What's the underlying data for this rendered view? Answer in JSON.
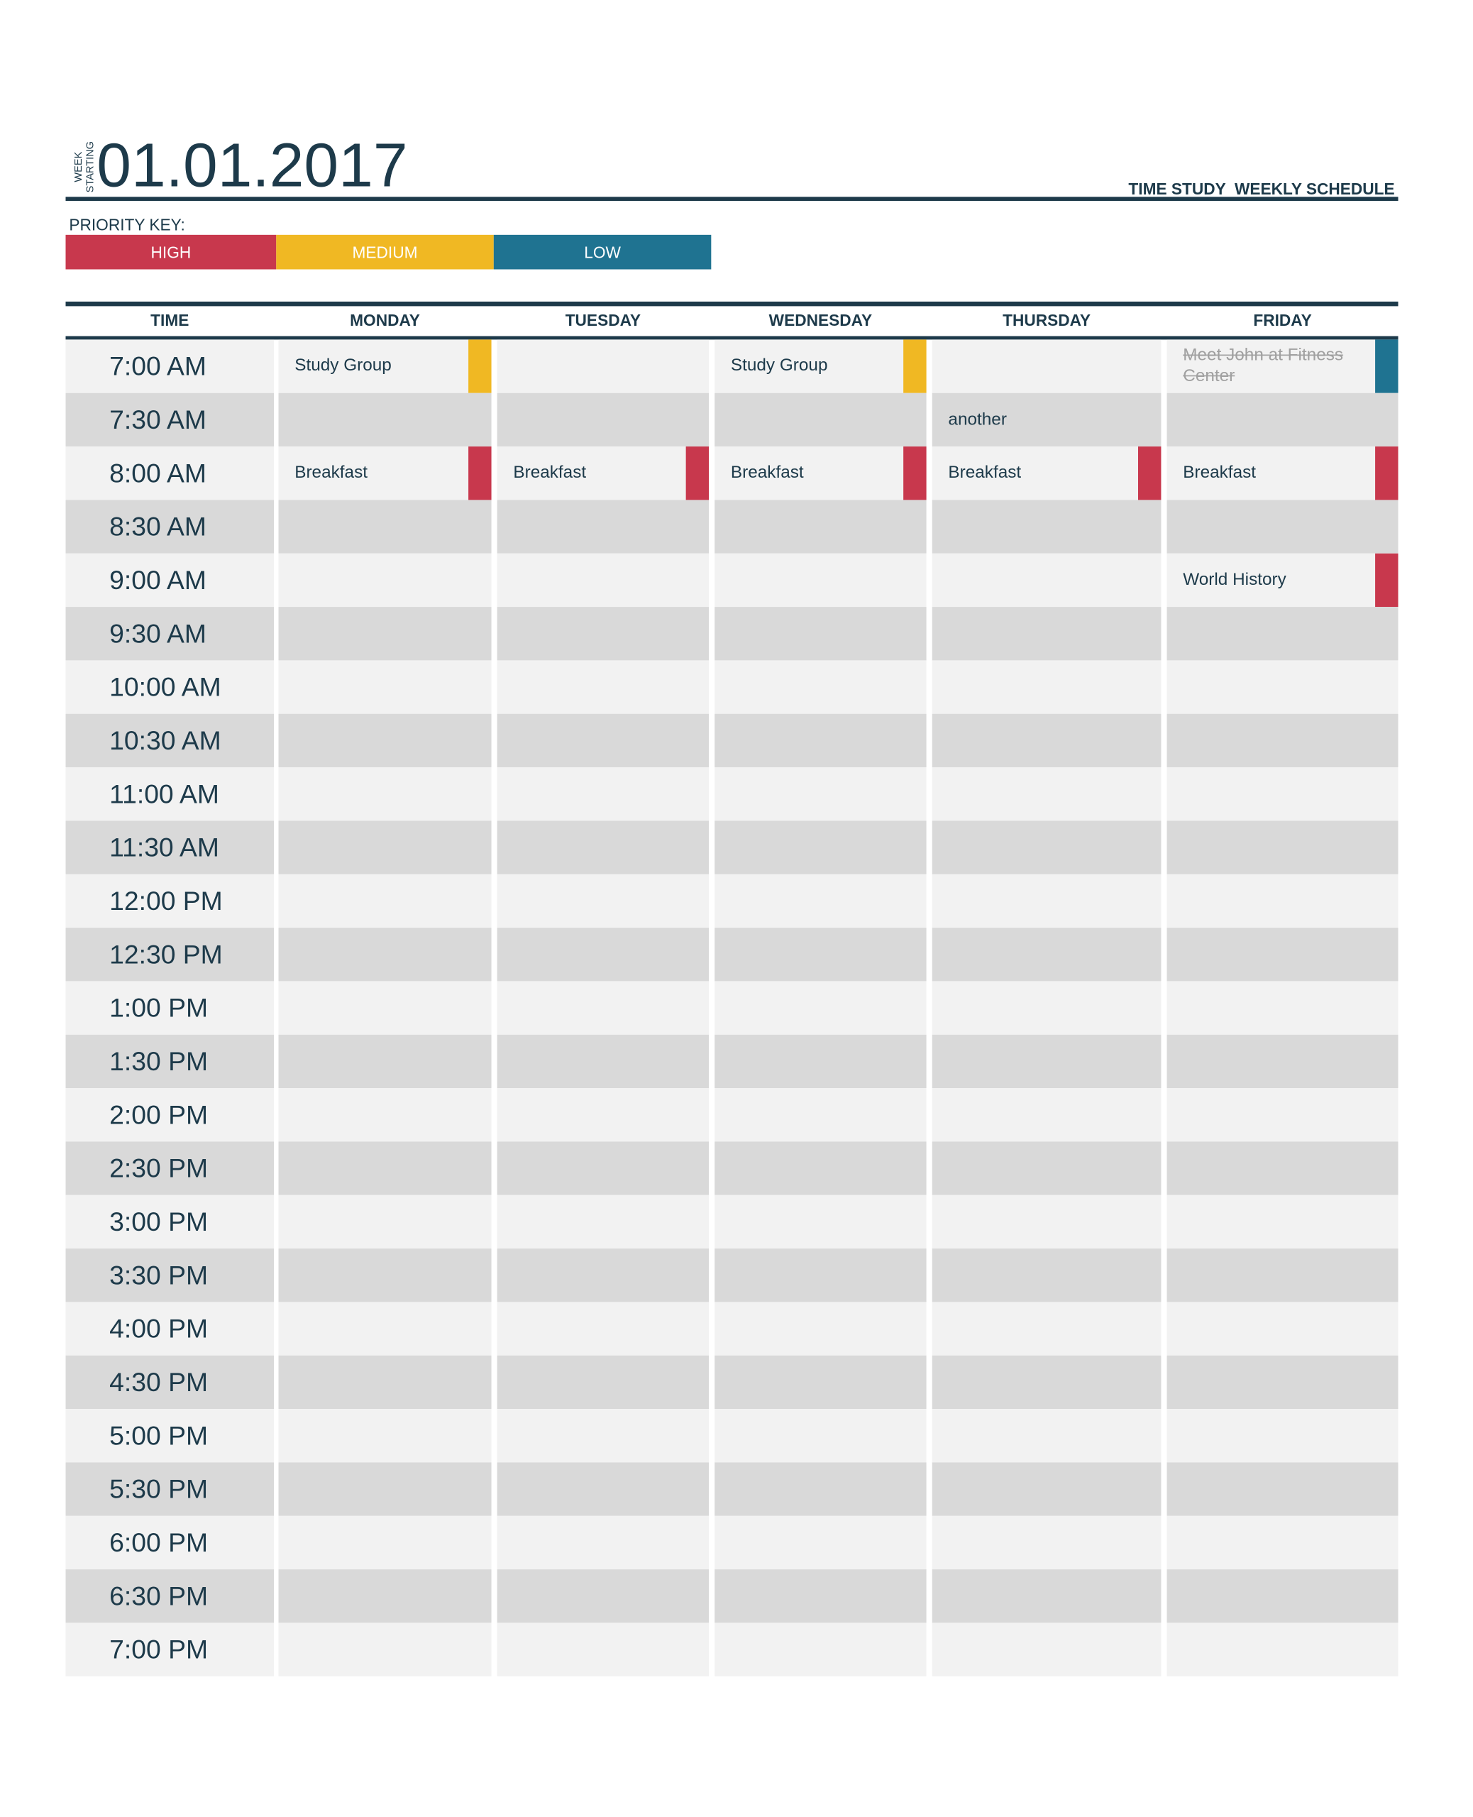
{
  "header": {
    "week_label": [
      "WEEK",
      "STARTING"
    ],
    "date": "01.01.2017",
    "title": "TIME STUDY  WEEKLY SCHEDULE"
  },
  "priority_key": {
    "label": "PRIORITY KEY:",
    "levels": [
      "HIGH",
      "MEDIUM",
      "LOW"
    ],
    "colors": {
      "HIGH": "#c8384d",
      "MEDIUM": "#f0b823",
      "LOW": "#1f7391"
    }
  },
  "table": {
    "headers": [
      "TIME",
      "MONDAY",
      "TUESDAY",
      "WEDNESDAY",
      "THURSDAY",
      "FRIDAY"
    ],
    "rows": [
      {
        "time": "7:00 AM",
        "cells": [
          {
            "text": "Study Group",
            "priority": "MEDIUM"
          },
          null,
          {
            "text": "Study Group",
            "priority": "MEDIUM"
          },
          null,
          {
            "text": "Meet John at Fitness Center",
            "priority": "LOW",
            "done": true
          }
        ]
      },
      {
        "time": "7:30 AM",
        "cells": [
          null,
          null,
          null,
          {
            "text": "another",
            "priority": null
          },
          null
        ]
      },
      {
        "time": "8:00 AM",
        "cells": [
          {
            "text": "Breakfast",
            "priority": "HIGH"
          },
          {
            "text": "Breakfast",
            "priority": "HIGH"
          },
          {
            "text": "Breakfast",
            "priority": "HIGH"
          },
          {
            "text": "Breakfast",
            "priority": "HIGH"
          },
          {
            "text": "Breakfast",
            "priority": "HIGH"
          }
        ]
      },
      {
        "time": "8:30 AM",
        "cells": [
          null,
          null,
          null,
          null,
          null
        ]
      },
      {
        "time": "9:00 AM",
        "cells": [
          null,
          null,
          null,
          null,
          {
            "text": "World History",
            "priority": "HIGH"
          }
        ]
      },
      {
        "time": "9:30 AM",
        "cells": [
          null,
          null,
          null,
          null,
          null
        ]
      },
      {
        "time": "10:00 AM",
        "cells": [
          null,
          null,
          null,
          null,
          null
        ]
      },
      {
        "time": "10:30 AM",
        "cells": [
          null,
          null,
          null,
          null,
          null
        ]
      },
      {
        "time": "11:00 AM",
        "cells": [
          null,
          null,
          null,
          null,
          null
        ]
      },
      {
        "time": "11:30 AM",
        "cells": [
          null,
          null,
          null,
          null,
          null
        ]
      },
      {
        "time": "12:00 PM",
        "cells": [
          null,
          null,
          null,
          null,
          null
        ]
      },
      {
        "time": "12:30 PM",
        "cells": [
          null,
          null,
          null,
          null,
          null
        ]
      },
      {
        "time": "1:00 PM",
        "cells": [
          null,
          null,
          null,
          null,
          null
        ]
      },
      {
        "time": "1:30 PM",
        "cells": [
          null,
          null,
          null,
          null,
          null
        ]
      },
      {
        "time": "2:00 PM",
        "cells": [
          null,
          null,
          null,
          null,
          null
        ]
      },
      {
        "time": "2:30 PM",
        "cells": [
          null,
          null,
          null,
          null,
          null
        ]
      },
      {
        "time": "3:00 PM",
        "cells": [
          null,
          null,
          null,
          null,
          null
        ]
      },
      {
        "time": "3:30 PM",
        "cells": [
          null,
          null,
          null,
          null,
          null
        ]
      },
      {
        "time": "4:00 PM",
        "cells": [
          null,
          null,
          null,
          null,
          null
        ]
      },
      {
        "time": "4:30 PM",
        "cells": [
          null,
          null,
          null,
          null,
          null
        ]
      },
      {
        "time": "5:00 PM",
        "cells": [
          null,
          null,
          null,
          null,
          null
        ]
      },
      {
        "time": "5:30 PM",
        "cells": [
          null,
          null,
          null,
          null,
          null
        ]
      },
      {
        "time": "6:00 PM",
        "cells": [
          null,
          null,
          null,
          null,
          null
        ]
      },
      {
        "time": "6:30 PM",
        "cells": [
          null,
          null,
          null,
          null,
          null
        ]
      },
      {
        "time": "7:00 PM",
        "cells": [
          null,
          null,
          null,
          null,
          null
        ]
      }
    ]
  }
}
